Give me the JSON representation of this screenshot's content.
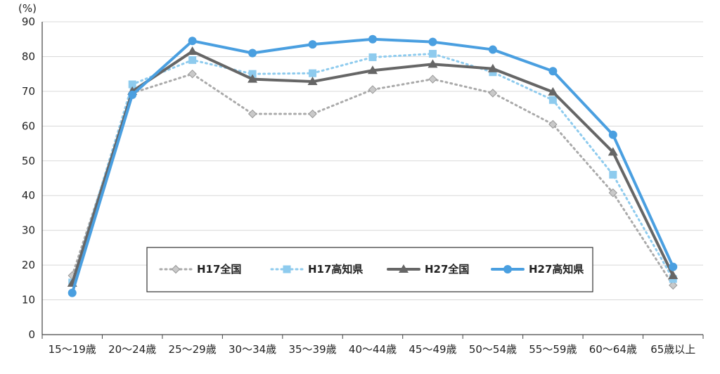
{
  "chart_data": {
    "type": "line",
    "ylabel": "(%)",
    "ylim": [
      0,
      90
    ],
    "yticks": [
      0,
      10,
      20,
      30,
      40,
      50,
      60,
      70,
      80,
      90
    ],
    "grid": "horizontal",
    "legend_placement": "bottom-center",
    "categories": [
      "15～19歳",
      "20～24歳",
      "25～29歳",
      "30～34歳",
      "35～39歳",
      "40～44歳",
      "45～49歳",
      "50～54歳",
      "55～59歳",
      "60～64歳",
      "65歳以上"
    ],
    "series": [
      {
        "name": "H17全国",
        "color": "#aaaaaa",
        "line_style": "dotted",
        "marker": "diamond",
        "values": [
          17,
          69.5,
          75,
          63.5,
          63.5,
          70.5,
          73.5,
          69.5,
          60.5,
          40.8,
          14.2
        ]
      },
      {
        "name": "H17高知県",
        "color": "#8ecbee",
        "line_style": "dotted",
        "marker": "square",
        "values": [
          15,
          72,
          79,
          75,
          75.2,
          79.8,
          80.8,
          75.5,
          67.5,
          46,
          16
        ]
      },
      {
        "name": "H27全国",
        "color": "#666666",
        "line_style": "solid",
        "marker": "triangle",
        "values": [
          14.8,
          70,
          81.5,
          73.5,
          72.8,
          76,
          77.8,
          76.5,
          69.8,
          52.5,
          17
        ]
      },
      {
        "name": "H27高知県",
        "color": "#4a9fe0",
        "line_style": "solid",
        "marker": "circle",
        "values": [
          12,
          69,
          84.5,
          81,
          83.5,
          85,
          84.2,
          82,
          75.8,
          57.5,
          19.5
        ]
      }
    ]
  }
}
